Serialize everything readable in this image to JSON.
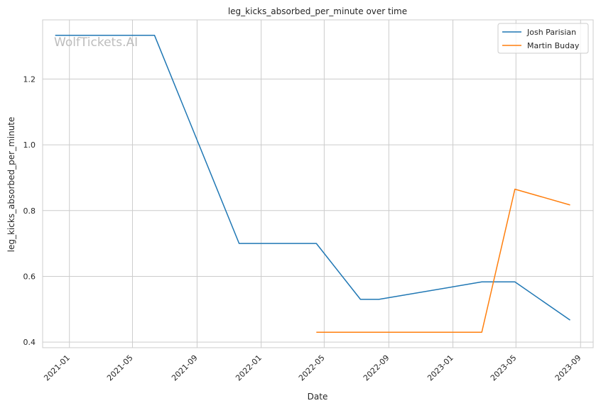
{
  "chart_data": {
    "type": "line",
    "title": "leg_kicks_absorbed_per_minute over time",
    "xlabel": "Date",
    "ylabel": "leg_kicks_absorbed_per_minute",
    "watermark": "WolfTickets.AI",
    "grid": true,
    "legend_position": "top-right",
    "x_ticks": [
      "2021-01",
      "2021-05",
      "2021-09",
      "2022-01",
      "2022-05",
      "2022-09",
      "2023-01",
      "2023-05",
      "2023-09"
    ],
    "y_ticks": [
      "0.4",
      "0.6",
      "0.8",
      "1.0",
      "1.2"
    ],
    "xlim": [
      "2020-11-11",
      "2023-09-25"
    ],
    "ylim": [
      0.383,
      1.38
    ],
    "series": [
      {
        "name": "Josh Parisian",
        "color": "#1f77b4",
        "points": [
          {
            "x": "2020-12-05",
            "y": 1.333
          },
          {
            "x": "2021-06-12",
            "y": 1.333
          },
          {
            "x": "2021-11-20",
            "y": 0.7
          },
          {
            "x": "2022-04-16",
            "y": 0.7
          },
          {
            "x": "2022-07-09",
            "y": 0.53
          },
          {
            "x": "2022-08-13",
            "y": 0.53
          },
          {
            "x": "2023-02-25",
            "y": 0.583
          },
          {
            "x": "2023-04-29",
            "y": 0.583
          },
          {
            "x": "2023-08-12",
            "y": 0.467
          }
        ]
      },
      {
        "name": "Martin Buday",
        "color": "#ff7f0e",
        "points": [
          {
            "x": "2022-04-16",
            "y": 0.43
          },
          {
            "x": "2023-02-25",
            "y": 0.43
          },
          {
            "x": "2023-04-29",
            "y": 0.865
          },
          {
            "x": "2023-08-12",
            "y": 0.817
          }
        ]
      }
    ]
  }
}
